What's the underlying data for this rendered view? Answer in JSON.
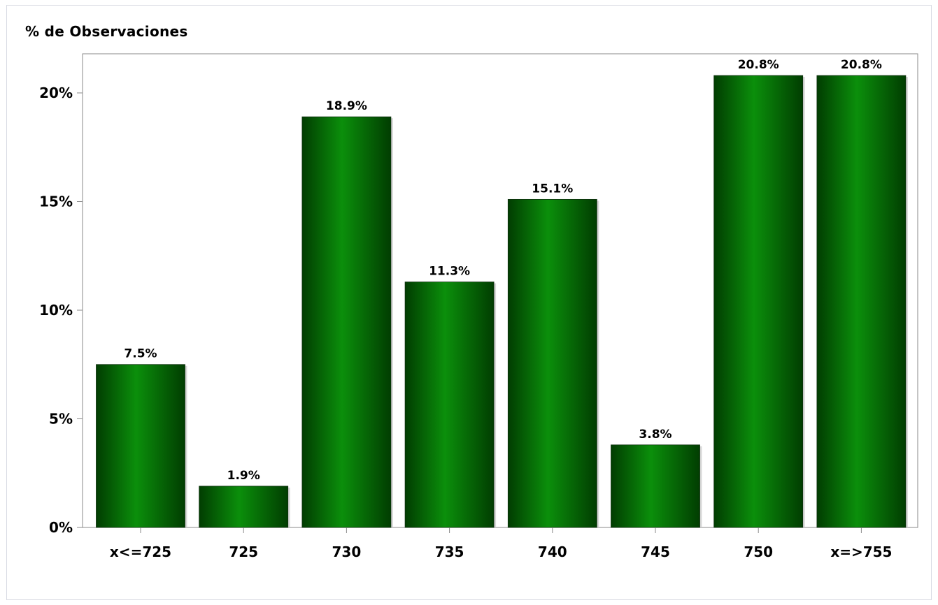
{
  "chart_data": {
    "type": "bar",
    "ylabel": "% de Observaciones",
    "xlabel": "",
    "categories": [
      "x<=725",
      "725",
      "730",
      "735",
      "740",
      "745",
      "750",
      "x=>755"
    ],
    "values": [
      7.5,
      1.9,
      18.9,
      11.3,
      15.1,
      3.8,
      20.8,
      20.8
    ],
    "data_labels": [
      "7.5%",
      "1.9%",
      "18.9%",
      "11.3%",
      "15.1%",
      "3.8%",
      "20.8%",
      "20.8%"
    ],
    "ylim": [
      0,
      21.8
    ],
    "yticks": [
      0,
      5,
      10,
      15,
      20
    ],
    "ytick_labels": [
      "0%",
      "5%",
      "10%",
      "15%",
      "20%"
    ],
    "bar_colors": {
      "edge": "#013d01",
      "center": "#0b8f0b"
    },
    "grid": false,
    "legend": "none"
  }
}
